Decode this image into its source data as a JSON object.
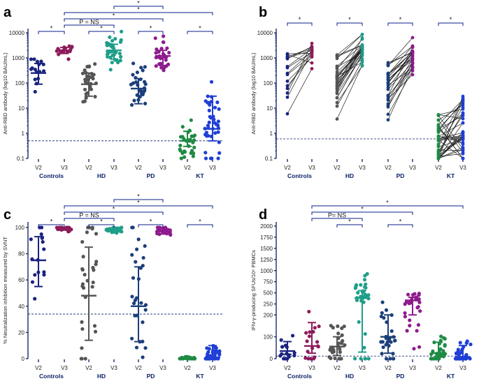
{
  "figure": {
    "panel_letters": [
      "a",
      "b",
      "c",
      "d"
    ]
  },
  "colors": {
    "controls_v2": "#1a237e",
    "controls_v3": "#8e1b5a",
    "hd_v2": "#555555",
    "hd_v3": "#1f9e89",
    "pd_v2": "#1c3f7a",
    "pd_v3": "#8e1b8e",
    "kt_v2": "#1e8a44",
    "kt_v3": "#1f3fd6"
  },
  "chart_data": [
    {
      "panel": "a",
      "type": "scatter",
      "ylabel": "Anti-RBD antibody (log10 BAU/mL)",
      "yscale": "log",
      "ylim": [
        0.1,
        10000
      ],
      "yticks": [
        "0.1",
        "1",
        "10",
        "100",
        "1000",
        "10000"
      ],
      "threshold": 0.5,
      "groups": [
        "Controls",
        "HD",
        "PD",
        "KT"
      ],
      "timepoints": [
        "V2",
        "V3"
      ],
      "series": [
        {
          "name": "Controls V2",
          "median": 250,
          "iqr": [
            90,
            600
          ],
          "n": 16
        },
        {
          "name": "Controls V3",
          "median": 2000,
          "iqr": [
            1500,
            2600
          ],
          "n": 18
        },
        {
          "name": "HD V2",
          "median": 90,
          "iqr": [
            30,
            250
          ],
          "n": 30
        },
        {
          "name": "HD V3",
          "median": 2000,
          "iqr": [
            900,
            3500
          ],
          "n": 35
        },
        {
          "name": "PD V2",
          "median": 60,
          "iqr": [
            15,
            150
          ],
          "n": 28
        },
        {
          "name": "PD V3",
          "median": 1200,
          "iqr": [
            500,
            2000
          ],
          "n": 28
        },
        {
          "name": "KT V2",
          "median": 0.5,
          "iqr": [
            0.3,
            1.2
          ],
          "n": 30
        },
        {
          "name": "KT V3",
          "median": 1.5,
          "iqr": [
            0.5,
            30
          ],
          "n": 40
        }
      ],
      "brackets": [
        {
          "from": "Controls V2",
          "to": "Controls V3",
          "label": "*"
        },
        {
          "from": "Controls V3",
          "to": "HD V3",
          "label": "P = NS"
        },
        {
          "from": "Controls V3",
          "to": "PD V3",
          "label": "*"
        },
        {
          "from": "Controls V3",
          "to": "KT V3",
          "label": "*"
        },
        {
          "from": "HD V2",
          "to": "HD V3",
          "label": "*"
        },
        {
          "from": "PD V2",
          "to": "PD V3",
          "label": "*"
        },
        {
          "from": "KT V2",
          "to": "KT V3",
          "label": "*"
        },
        {
          "from": "HD V3",
          "to": "PD V3",
          "label": "*"
        }
      ]
    },
    {
      "panel": "b",
      "type": "line",
      "ylabel": "Anti-RBD antibody (log10 BAU/mL)",
      "yscale": "log",
      "ylim": [
        0.1,
        10000
      ],
      "yticks": [
        "0.1",
        "1",
        "10",
        "100",
        "1000",
        "10000"
      ],
      "threshold": 0.6,
      "groups": [
        "Controls",
        "HD",
        "PD",
        "KT"
      ],
      "timepoints": [
        "V2",
        "V3"
      ],
      "paired_n": {
        "Controls": 16,
        "HD": 30,
        "PD": 28,
        "KT": 40
      },
      "brackets": [
        {
          "group": "Controls",
          "label": "*"
        },
        {
          "group": "HD",
          "label": "*"
        },
        {
          "group": "PD",
          "label": "*"
        },
        {
          "group": "KT",
          "label": "*"
        }
      ]
    },
    {
      "panel": "c",
      "type": "scatter",
      "ylabel": "% Neutralization inhibition measured by SVNT",
      "yscale": "linear",
      "ylim": [
        0,
        100
      ],
      "yticks": [
        "0",
        "20",
        "40",
        "60",
        "80",
        "100"
      ],
      "threshold": 34,
      "groups": [
        "Controls",
        "HD",
        "PD",
        "KT"
      ],
      "timepoints": [
        "V2",
        "V3"
      ],
      "series": [
        {
          "name": "Controls V2",
          "median": 75,
          "iqr": [
            55,
            93
          ],
          "n": 16
        },
        {
          "name": "Controls V3",
          "median": 99,
          "iqr": [
            98,
            100
          ],
          "n": 18
        },
        {
          "name": "HD V2",
          "median": 48,
          "iqr": [
            14,
            85
          ],
          "n": 30
        },
        {
          "name": "HD V3",
          "median": 98,
          "iqr": [
            97,
            99
          ],
          "n": 35
        },
        {
          "name": "PD V2",
          "median": 40,
          "iqr": [
            13,
            70
          ],
          "n": 28
        },
        {
          "name": "PD V3",
          "median": 97,
          "iqr": [
            95,
            98
          ],
          "n": 28
        },
        {
          "name": "KT V2",
          "median": 0.5,
          "iqr": [
            0,
            1
          ],
          "n": 30
        },
        {
          "name": "KT V3",
          "median": 1,
          "iqr": [
            0,
            10
          ],
          "n": 40
        }
      ],
      "brackets": [
        {
          "from": "Controls V2",
          "to": "Controls V3",
          "label": "*"
        },
        {
          "from": "Controls V3",
          "to": "HD V3",
          "label": "P = NS"
        },
        {
          "from": "Controls V3",
          "to": "PD V3",
          "label": "*"
        },
        {
          "from": "Controls V3",
          "to": "KT V3",
          "label": "*"
        },
        {
          "from": "HD V2",
          "to": "HD V3",
          "label": "*"
        },
        {
          "from": "PD V2",
          "to": "PD V3",
          "label": "*"
        },
        {
          "from": "KT V2",
          "to": "KT V3",
          "label": "*"
        },
        {
          "from": "HD V3",
          "to": "PD V3",
          "label": "*"
        }
      ]
    },
    {
      "panel": "d",
      "type": "scatter",
      "ylabel": "IFN-γ-producing SFUs/10⁶ PBMCs",
      "yscale": "broken",
      "ylim": [
        0,
        2000
      ],
      "yticks": [
        "0",
        "100",
        "200",
        "250",
        "500",
        "750",
        "1000",
        "1250",
        "1500",
        "1750",
        "2000"
      ],
      "threshold": 12,
      "groups": [
        "Controls",
        "HD",
        "PD",
        "KT"
      ],
      "timepoints": [
        "V2",
        "V3"
      ],
      "series": [
        {
          "name": "Controls V2",
          "median": 35,
          "iqr": [
            20,
            78
          ],
          "n": 16
        },
        {
          "name": "Controls V3",
          "median": 58,
          "iqr": [
            25,
            165
          ],
          "n": 18
        },
        {
          "name": "HD V2",
          "median": 55,
          "iqr": [
            15,
            100
          ],
          "n": 30
        },
        {
          "name": "HD V3",
          "median": 380,
          "iqr": [
            30,
            550
          ],
          "n": 35
        },
        {
          "name": "PD V2",
          "median": 100,
          "iqr": [
            25,
            200
          ],
          "n": 28
        },
        {
          "name": "PD V3",
          "median": 330,
          "iqr": [
            200,
            400
          ],
          "n": 28
        },
        {
          "name": "KT V2",
          "median": 25,
          "iqr": [
            10,
            75
          ],
          "n": 30
        },
        {
          "name": "KT V3",
          "median": 8,
          "iqr": [
            2,
            60
          ],
          "n": 40
        }
      ],
      "brackets": [
        {
          "from": "HD V2",
          "to": "HD V3",
          "label": "*"
        },
        {
          "from": "PD V2",
          "to": "PD V3",
          "label": "*"
        },
        {
          "from": "Controls V3",
          "to": "HD V3",
          "label": "P= NS"
        },
        {
          "from": "Controls V3",
          "to": "PD V3",
          "label": "*"
        },
        {
          "from": "Controls V3",
          "to": "KT V3",
          "label": "*"
        }
      ]
    }
  ]
}
